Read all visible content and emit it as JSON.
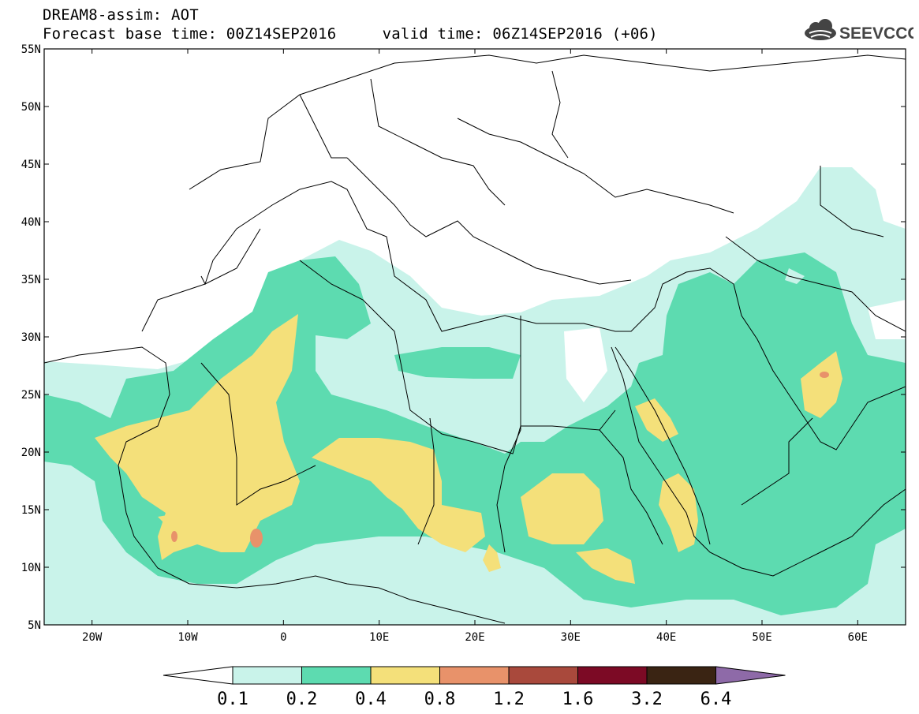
{
  "header": {
    "title_line1": "DREAM8-assim: AOT",
    "base_time_label": "Forecast base time: 00Z14SEP2016",
    "valid_time_label": "valid time: 06Z14SEP2016 (+06)"
  },
  "logo": {
    "text": "SEEVCCC",
    "icon": "cloud-icon"
  },
  "map": {
    "lon_range": [
      -25,
      65
    ],
    "lat_range": [
      5,
      55
    ],
    "lat_ticks": [
      {
        "value": 55,
        "label": "55N"
      },
      {
        "value": 50,
        "label": "50N"
      },
      {
        "value": 45,
        "label": "45N"
      },
      {
        "value": 40,
        "label": "40N"
      },
      {
        "value": 35,
        "label": "35N"
      },
      {
        "value": 30,
        "label": "30N"
      },
      {
        "value": 25,
        "label": "25N"
      },
      {
        "value": 20,
        "label": "20N"
      },
      {
        "value": 15,
        "label": "15N"
      },
      {
        "value": 10,
        "label": "10N"
      },
      {
        "value": 5,
        "label": "5N"
      }
    ],
    "lon_ticks": [
      {
        "value": -20,
        "label": "20W"
      },
      {
        "value": -10,
        "label": "10W"
      },
      {
        "value": 0,
        "label": "0"
      },
      {
        "value": 10,
        "label": "10E"
      },
      {
        "value": 20,
        "label": "20E"
      },
      {
        "value": 30,
        "label": "30E"
      },
      {
        "value": 40,
        "label": "40E"
      },
      {
        "value": 50,
        "label": "50E"
      },
      {
        "value": 60,
        "label": "60E"
      }
    ]
  },
  "colorbar": {
    "levels": [
      "0.1",
      "0.2",
      "0.4",
      "0.8",
      "1.2",
      "1.6",
      "3.2",
      "6.4"
    ],
    "colors": [
      "#c9f3ea",
      "#5ddbb0",
      "#f4e07a",
      "#e8926a",
      "#a9493c",
      "#7c0a25",
      "#3a2413",
      "#8e6aa8"
    ],
    "low_end_color": "#ffffff"
  }
}
